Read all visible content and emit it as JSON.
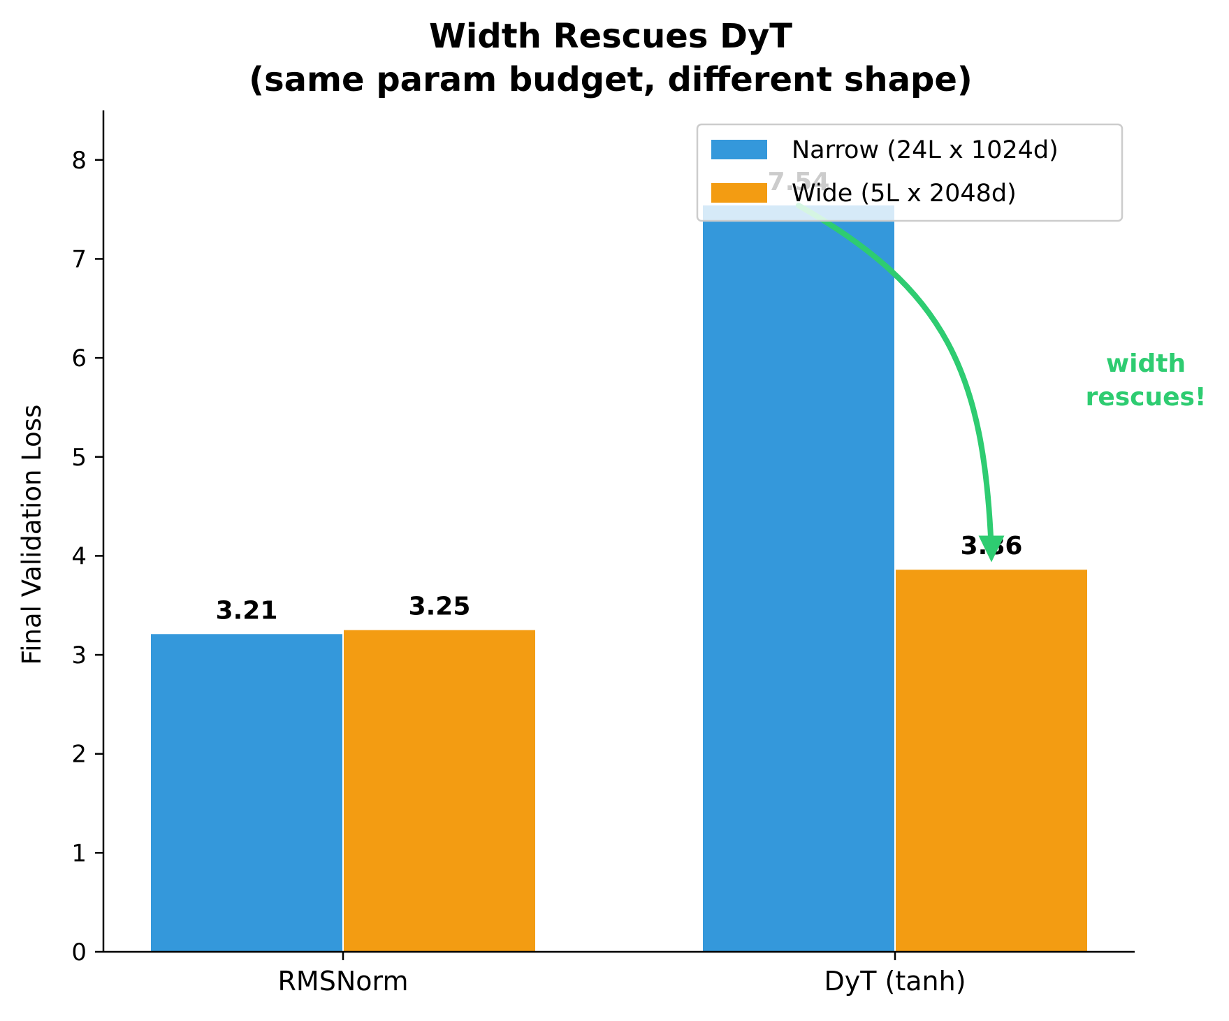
{
  "chart_data": {
    "type": "bar",
    "title_lines": [
      "Width Rescues DyT",
      "(same param budget, different shape)"
    ],
    "xlabel": "",
    "ylabel": "Final Validation Loss",
    "categories": [
      "RMSNorm",
      "DyT (tanh)"
    ],
    "series": [
      {
        "name": "Narrow (24L x 1024d)",
        "color": "#3498db",
        "values": [
          3.21,
          7.54
        ],
        "labels": [
          "3.21",
          "7.54"
        ]
      },
      {
        "name": "Wide (5L x 2048d)",
        "color": "#f39c12",
        "values": [
          3.25,
          3.86
        ],
        "labels": [
          "3.25",
          "3.86"
        ]
      }
    ],
    "ylim": [
      0,
      8.5
    ],
    "yticks": [
      0,
      1,
      2,
      3,
      4,
      5,
      6,
      7,
      8
    ],
    "grid": false,
    "legend_position": "top-right",
    "annotation": {
      "text_lines": [
        "width",
        "rescues!"
      ],
      "color": "#2ecc71",
      "arrow_from": {
        "category": "DyT (tanh)",
        "series": 0,
        "y": 7.54
      },
      "arrow_to": {
        "category": "DyT (tanh)",
        "series": 1,
        "y": 3.95
      }
    }
  }
}
